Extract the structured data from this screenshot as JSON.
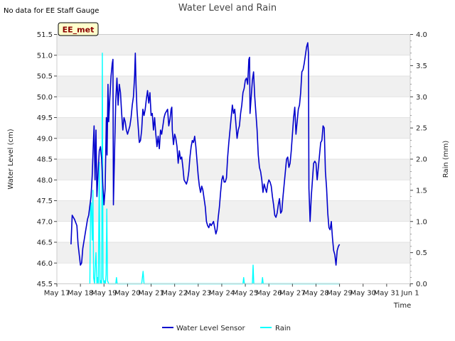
{
  "chart_data": {
    "type": "line",
    "title": "Water Level and Rain",
    "note": "No data for EE Staff Gauge",
    "site_badge": "EE_met",
    "xlabel": "Time",
    "ylabel": "Water Level (cm)",
    "y2label": "Rain (mm)",
    "x_range_days": [
      0,
      15
    ],
    "x_ticks": [
      {
        "day": 0,
        "label": "May 17"
      },
      {
        "day": 1,
        "label": "May 18"
      },
      {
        "day": 2,
        "label": "May 19"
      },
      {
        "day": 3,
        "label": "May 20"
      },
      {
        "day": 4,
        "label": "May 21"
      },
      {
        "day": 5,
        "label": "May 22"
      },
      {
        "day": 6,
        "label": "May 23"
      },
      {
        "day": 7,
        "label": "May 24"
      },
      {
        "day": 8,
        "label": "May 25"
      },
      {
        "day": 9,
        "label": "May 26"
      },
      {
        "day": 10,
        "label": "May 27"
      },
      {
        "day": 11,
        "label": "May 28"
      },
      {
        "day": 12,
        "label": "May 29"
      },
      {
        "day": 13,
        "label": "May 30"
      },
      {
        "day": 14,
        "label": "May 31"
      },
      {
        "day": 15,
        "label": "Jun 1"
      }
    ],
    "ylim": [
      45.5,
      51.5
    ],
    "y_ticks": [
      45.5,
      46.0,
      46.5,
      47.0,
      47.5,
      48.0,
      48.5,
      49.0,
      49.5,
      50.0,
      50.5,
      51.0,
      51.5
    ],
    "y2lim": [
      0.0,
      4.0
    ],
    "y2_ticks": [
      0.0,
      0.5,
      1.0,
      1.5,
      2.0,
      2.5,
      3.0,
      3.5,
      4.0
    ],
    "series": [
      {
        "name": "Water Level Sensor",
        "axis": "left",
        "color": "#0000cc",
        "points": [
          [
            0.6,
            46.45
          ],
          [
            0.65,
            47.15
          ],
          [
            0.75,
            47.05
          ],
          [
            0.85,
            46.9
          ],
          [
            0.9,
            46.45
          ],
          [
            0.95,
            46.2
          ],
          [
            1.0,
            45.95
          ],
          [
            1.05,
            46.0
          ],
          [
            1.1,
            46.35
          ],
          [
            1.2,
            46.7
          ],
          [
            1.3,
            47.05
          ],
          [
            1.35,
            47.15
          ],
          [
            1.45,
            47.6
          ],
          [
            1.5,
            48.1
          ],
          [
            1.55,
            48.9
          ],
          [
            1.58,
            49.3
          ],
          [
            1.62,
            48.0
          ],
          [
            1.66,
            49.2
          ],
          [
            1.7,
            47.6
          ],
          [
            1.75,
            48.2
          ],
          [
            1.8,
            48.7
          ],
          [
            1.85,
            48.8
          ],
          [
            1.9,
            48.5
          ],
          [
            1.95,
            47.9
          ],
          [
            2.0,
            47.4
          ],
          [
            2.05,
            47.8
          ],
          [
            2.1,
            49.5
          ],
          [
            2.13,
            48.6
          ],
          [
            2.17,
            50.3
          ],
          [
            2.2,
            49.4
          ],
          [
            2.25,
            50.0
          ],
          [
            2.3,
            50.5
          ],
          [
            2.35,
            50.8
          ],
          [
            2.38,
            50.9
          ],
          [
            2.4,
            47.4
          ],
          [
            2.45,
            48.7
          ],
          [
            2.5,
            49.9
          ],
          [
            2.55,
            50.45
          ],
          [
            2.6,
            49.8
          ],
          [
            2.65,
            50.3
          ],
          [
            2.7,
            50.1
          ],
          [
            2.75,
            49.6
          ],
          [
            2.8,
            49.2
          ],
          [
            2.85,
            49.5
          ],
          [
            2.9,
            49.4
          ],
          [
            2.95,
            49.2
          ],
          [
            3.0,
            49.1
          ],
          [
            3.05,
            49.2
          ],
          [
            3.1,
            49.3
          ],
          [
            3.15,
            49.5
          ],
          [
            3.2,
            49.8
          ],
          [
            3.25,
            50.0
          ],
          [
            3.3,
            50.5
          ],
          [
            3.33,
            51.05
          ],
          [
            3.36,
            50.3
          ],
          [
            3.4,
            49.7
          ],
          [
            3.45,
            49.3
          ],
          [
            3.5,
            48.9
          ],
          [
            3.55,
            48.95
          ],
          [
            3.6,
            49.2
          ],
          [
            3.65,
            49.7
          ],
          [
            3.7,
            49.55
          ],
          [
            3.75,
            49.7
          ],
          [
            3.8,
            49.95
          ],
          [
            3.85,
            50.15
          ],
          [
            3.9,
            49.85
          ],
          [
            3.95,
            50.1
          ],
          [
            4.0,
            49.55
          ],
          [
            4.05,
            49.6
          ],
          [
            4.1,
            49.2
          ],
          [
            4.15,
            49.5
          ],
          [
            4.2,
            49.1
          ],
          [
            4.25,
            48.8
          ],
          [
            4.3,
            49.05
          ],
          [
            4.35,
            48.75
          ],
          [
            4.4,
            49.2
          ],
          [
            4.45,
            49.1
          ],
          [
            4.5,
            49.3
          ],
          [
            4.55,
            49.5
          ],
          [
            4.6,
            49.6
          ],
          [
            4.65,
            49.65
          ],
          [
            4.7,
            49.7
          ],
          [
            4.75,
            49.3
          ],
          [
            4.8,
            49.45
          ],
          [
            4.85,
            49.7
          ],
          [
            4.88,
            49.75
          ],
          [
            4.9,
            49.2
          ],
          [
            4.95,
            48.85
          ],
          [
            5.0,
            49.1
          ],
          [
            5.05,
            49.0
          ],
          [
            5.1,
            48.8
          ],
          [
            5.15,
            48.4
          ],
          [
            5.2,
            48.7
          ],
          [
            5.25,
            48.5
          ],
          [
            5.3,
            48.55
          ],
          [
            5.35,
            48.3
          ],
          [
            5.4,
            48.0
          ],
          [
            5.45,
            47.95
          ],
          [
            5.5,
            47.9
          ],
          [
            5.55,
            48.0
          ],
          [
            5.6,
            48.2
          ],
          [
            5.65,
            48.55
          ],
          [
            5.7,
            48.8
          ],
          [
            5.75,
            48.95
          ],
          [
            5.8,
            48.9
          ],
          [
            5.85,
            49.05
          ],
          [
            5.9,
            48.8
          ],
          [
            5.95,
            48.45
          ],
          [
            6.0,
            48.1
          ],
          [
            6.05,
            47.85
          ],
          [
            6.1,
            47.7
          ],
          [
            6.15,
            47.85
          ],
          [
            6.2,
            47.75
          ],
          [
            6.25,
            47.55
          ],
          [
            6.3,
            47.35
          ],
          [
            6.35,
            47.0
          ],
          [
            6.4,
            46.9
          ],
          [
            6.45,
            46.85
          ],
          [
            6.5,
            46.95
          ],
          [
            6.55,
            46.9
          ],
          [
            6.6,
            46.95
          ],
          [
            6.65,
            47.0
          ],
          [
            6.7,
            46.85
          ],
          [
            6.75,
            46.7
          ],
          [
            6.8,
            46.8
          ],
          [
            6.85,
            47.1
          ],
          [
            6.9,
            47.35
          ],
          [
            6.95,
            47.7
          ],
          [
            7.0,
            48.0
          ],
          [
            7.05,
            48.1
          ],
          [
            7.1,
            47.95
          ],
          [
            7.15,
            47.95
          ],
          [
            7.2,
            48.05
          ],
          [
            7.25,
            48.55
          ],
          [
            7.3,
            48.9
          ],
          [
            7.35,
            49.2
          ],
          [
            7.4,
            49.5
          ],
          [
            7.45,
            49.8
          ],
          [
            7.5,
            49.6
          ],
          [
            7.55,
            49.7
          ],
          [
            7.6,
            49.35
          ],
          [
            7.65,
            49.0
          ],
          [
            7.7,
            49.2
          ],
          [
            7.75,
            49.3
          ],
          [
            7.8,
            49.6
          ],
          [
            7.85,
            49.8
          ],
          [
            7.9,
            50.1
          ],
          [
            7.95,
            50.2
          ],
          [
            8.0,
            50.4
          ],
          [
            8.05,
            50.45
          ],
          [
            8.1,
            50.3
          ],
          [
            8.15,
            50.9
          ],
          [
            8.18,
            50.95
          ],
          [
            8.2,
            49.6
          ],
          [
            8.25,
            50.0
          ],
          [
            8.3,
            50.4
          ],
          [
            8.35,
            50.6
          ],
          [
            8.4,
            50.0
          ],
          [
            8.45,
            49.6
          ],
          [
            8.5,
            49.2
          ],
          [
            8.55,
            48.6
          ],
          [
            8.6,
            48.3
          ],
          [
            8.65,
            48.2
          ],
          [
            8.7,
            48.0
          ],
          [
            8.75,
            47.7
          ],
          [
            8.8,
            47.9
          ],
          [
            8.85,
            47.8
          ],
          [
            8.9,
            47.7
          ],
          [
            8.95,
            47.9
          ],
          [
            9.0,
            48.0
          ],
          [
            9.05,
            47.95
          ],
          [
            9.1,
            47.85
          ],
          [
            9.15,
            47.6
          ],
          [
            9.2,
            47.4
          ],
          [
            9.25,
            47.15
          ],
          [
            9.3,
            47.1
          ],
          [
            9.35,
            47.2
          ],
          [
            9.4,
            47.4
          ],
          [
            9.45,
            47.55
          ],
          [
            9.5,
            47.2
          ],
          [
            9.55,
            47.25
          ],
          [
            9.6,
            47.6
          ],
          [
            9.65,
            47.9
          ],
          [
            9.7,
            48.2
          ],
          [
            9.75,
            48.5
          ],
          [
            9.8,
            48.55
          ],
          [
            9.85,
            48.3
          ],
          [
            9.9,
            48.4
          ],
          [
            9.95,
            48.7
          ],
          [
            10.0,
            49.1
          ],
          [
            10.05,
            49.5
          ],
          [
            10.1,
            49.75
          ],
          [
            10.15,
            49.1
          ],
          [
            10.2,
            49.4
          ],
          [
            10.25,
            49.7
          ],
          [
            10.3,
            49.8
          ],
          [
            10.35,
            50.1
          ],
          [
            10.4,
            50.6
          ],
          [
            10.45,
            50.65
          ],
          [
            10.5,
            50.8
          ],
          [
            10.55,
            51.0
          ],
          [
            10.6,
            51.2
          ],
          [
            10.65,
            51.3
          ],
          [
            10.68,
            51.05
          ],
          [
            10.7,
            47.8
          ],
          [
            10.75,
            47.0
          ],
          [
            10.8,
            47.6
          ],
          [
            10.85,
            48.0
          ],
          [
            10.9,
            48.4
          ],
          [
            10.95,
            48.45
          ],
          [
            11.0,
            48.4
          ],
          [
            11.05,
            48.0
          ],
          [
            11.1,
            48.3
          ],
          [
            11.15,
            48.6
          ],
          [
            11.2,
            48.9
          ],
          [
            11.25,
            48.95
          ],
          [
            11.3,
            49.3
          ],
          [
            11.35,
            49.25
          ],
          [
            11.4,
            48.2
          ],
          [
            11.45,
            47.8
          ],
          [
            11.5,
            47.2
          ],
          [
            11.55,
            46.85
          ],
          [
            11.6,
            46.8
          ],
          [
            11.65,
            47.0
          ],
          [
            11.7,
            46.6
          ],
          [
            11.75,
            46.3
          ],
          [
            11.8,
            46.2
          ],
          [
            11.85,
            45.95
          ],
          [
            11.9,
            46.3
          ],
          [
            11.95,
            46.4
          ],
          [
            12.0,
            46.45
          ]
        ]
      },
      {
        "name": "Rain",
        "axis": "right",
        "color": "#00ffff",
        "points": [
          [
            1.4,
            0.0
          ],
          [
            1.43,
            1.25
          ],
          [
            1.46,
            1.3
          ],
          [
            1.5,
            0.7
          ],
          [
            1.53,
            1.5
          ],
          [
            1.56,
            0.1
          ],
          [
            1.6,
            0.0
          ],
          [
            1.63,
            0.3
          ],
          [
            1.66,
            0.5
          ],
          [
            1.7,
            0.0
          ],
          [
            1.73,
            0.1
          ],
          [
            1.76,
            0.0
          ],
          [
            1.8,
            1.95
          ],
          [
            1.83,
            0.0
          ],
          [
            1.86,
            0.05
          ],
          [
            1.9,
            0.0
          ],
          [
            1.93,
            3.7
          ],
          [
            1.96,
            0.1
          ],
          [
            2.0,
            0.0
          ],
          [
            2.03,
            0.05
          ],
          [
            2.06,
            0.0
          ],
          [
            2.09,
            0.15
          ],
          [
            2.12,
            1.2
          ],
          [
            2.15,
            0.05
          ],
          [
            2.2,
            0.0
          ],
          [
            2.5,
            0.0
          ],
          [
            2.53,
            0.1
          ],
          [
            2.56,
            0.0
          ],
          [
            3.6,
            0.0
          ],
          [
            3.63,
            0.1
          ],
          [
            3.66,
            0.2
          ],
          [
            3.7,
            0.0
          ],
          [
            7.9,
            0.0
          ],
          [
            7.93,
            0.1
          ],
          [
            7.96,
            0.0
          ],
          [
            8.3,
            0.0
          ],
          [
            8.33,
            0.3
          ],
          [
            8.36,
            0.0
          ],
          [
            8.7,
            0.0
          ],
          [
            8.73,
            0.1
          ],
          [
            8.76,
            0.0
          ],
          [
            11.5,
            0.0
          ],
          [
            12.0,
            0.0
          ]
        ]
      }
    ],
    "legend_position": "bottom-center"
  }
}
